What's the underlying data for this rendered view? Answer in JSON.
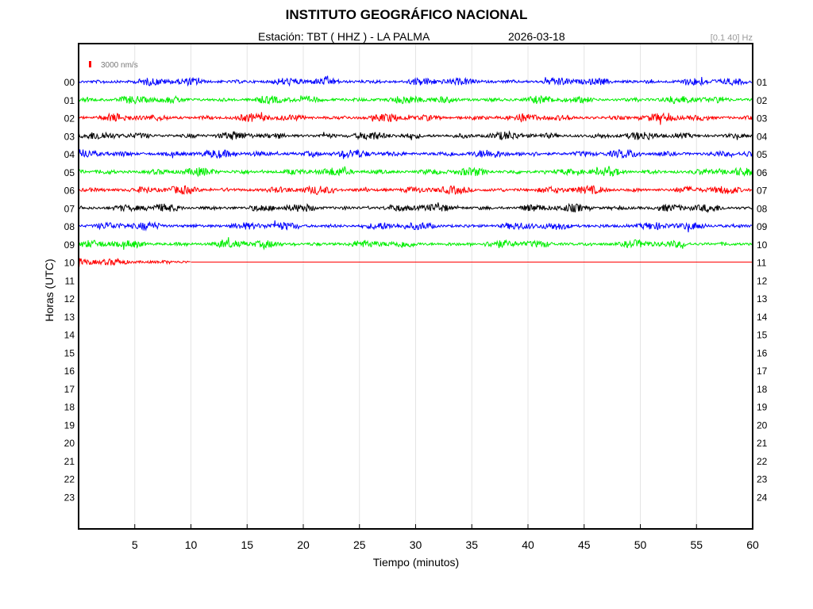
{
  "header": {
    "title": "INSTITUTO GEOGRÁFICO NACIONAL",
    "station": "Estación:  TBT ( HHZ ) - LA PALMA",
    "date": "2026-03-18",
    "filter": "[0.1 40] Hz"
  },
  "chart_data": {
    "type": "line",
    "xlabel": "Tiempo (minutos)",
    "ylabel": "Horas (UTC)",
    "xlim": [
      0,
      60
    ],
    "x_ticks": [
      "5",
      "10",
      "15",
      "20",
      "25",
      "30",
      "35",
      "40",
      "45",
      "50",
      "55",
      "60"
    ],
    "left_hour_labels": [
      "00",
      "01",
      "02",
      "03",
      "04",
      "05",
      "06",
      "07",
      "08",
      "09",
      "10",
      "11",
      "12",
      "13",
      "14",
      "15",
      "16",
      "17",
      "18",
      "19",
      "20",
      "21",
      "22",
      "23"
    ],
    "right_hour_labels": [
      "01",
      "02",
      "03",
      "04",
      "05",
      "06",
      "07",
      "08",
      "09",
      "10",
      "11",
      "12",
      "13",
      "14",
      "15",
      "16",
      "17",
      "18",
      "19",
      "20",
      "21",
      "22",
      "23",
      "24"
    ],
    "scale_bar": "3000 nm/s",
    "trace_color_cycle": [
      "#0000ff",
      "#00ee00",
      "#ff0000",
      "#000000"
    ],
    "traces": [
      {
        "hour": "00",
        "color": "#0000ff",
        "recorded_minutes": 60
      },
      {
        "hour": "01",
        "color": "#00ee00",
        "recorded_minutes": 60
      },
      {
        "hour": "02",
        "color": "#ff0000",
        "recorded_minutes": 60
      },
      {
        "hour": "03",
        "color": "#000000",
        "recorded_minutes": 60
      },
      {
        "hour": "04",
        "color": "#0000ff",
        "recorded_minutes": 60
      },
      {
        "hour": "05",
        "color": "#00ee00",
        "recorded_minutes": 60
      },
      {
        "hour": "06",
        "color": "#ff0000",
        "recorded_minutes": 60
      },
      {
        "hour": "07",
        "color": "#000000",
        "recorded_minutes": 60
      },
      {
        "hour": "08",
        "color": "#0000ff",
        "recorded_minutes": 60
      },
      {
        "hour": "09",
        "color": "#00ee00",
        "recorded_minutes": 60
      },
      {
        "hour": "10",
        "color": "#ff0000",
        "recorded_minutes": 10
      }
    ],
    "grid": true
  }
}
